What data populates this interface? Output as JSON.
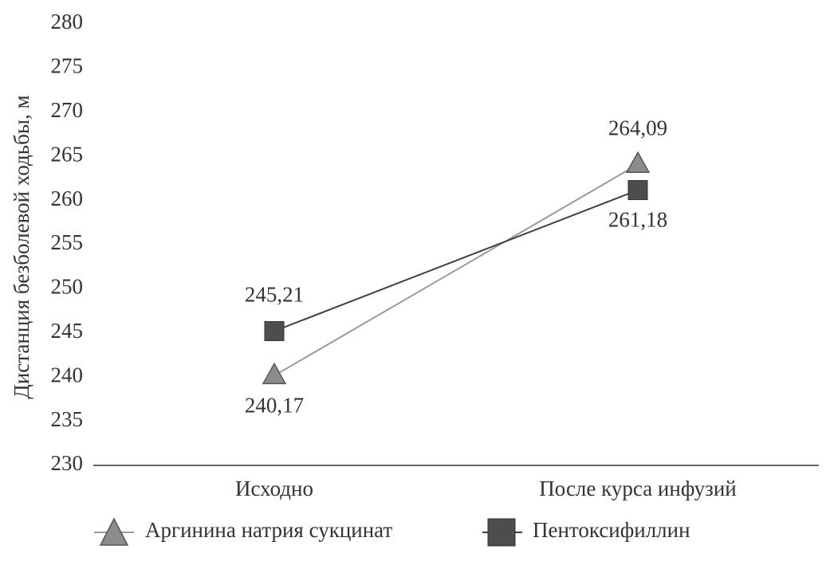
{
  "chart_data": {
    "type": "line",
    "y_label": "Дистанция безболевой ходьбы, м",
    "categories": [
      "Исходно",
      "После курса инфузий"
    ],
    "series": [
      {
        "name": "Аргинина натрия сукцинат",
        "color": "#8c8c8c",
        "marker": "triangle",
        "values": [
          240.17,
          264.09
        ],
        "value_labels": [
          "240,17",
          "264,09"
        ]
      },
      {
        "name": "Пентоксифиллин",
        "color": "#4d4d4d",
        "marker": "square",
        "values": [
          245.21,
          261.18
        ],
        "value_labels": [
          "245,21",
          "261,18"
        ]
      }
    ],
    "ylim": [
      230,
      280
    ],
    "yticks": [
      230,
      235,
      240,
      245,
      250,
      255,
      260,
      265,
      270,
      275,
      280
    ],
    "grid": false,
    "legend": "bottom"
  }
}
